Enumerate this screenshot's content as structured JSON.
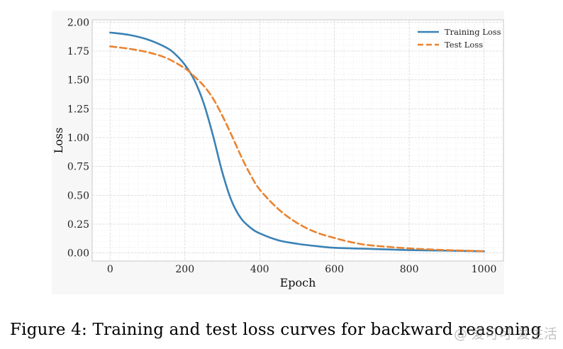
{
  "colors": {
    "training": "#3a82b5",
    "test": "#ea8330",
    "grid": "#dcdcdc",
    "plot_bg": "#ffffff"
  },
  "chart_data": {
    "type": "line",
    "xlabel": "Epoch",
    "ylabel": "Loss",
    "xlim": [
      -48,
      1052
    ],
    "ylim": [
      -0.07,
      2.02
    ],
    "xticks": [
      0,
      200,
      400,
      600,
      800,
      1000
    ],
    "yticks": [
      0.0,
      0.25,
      0.5,
      0.75,
      1.0,
      1.25,
      1.5,
      1.75,
      2.0
    ],
    "xtick_labels": [
      "0",
      "200",
      "400",
      "600",
      "800",
      "1000"
    ],
    "ytick_labels": [
      "0.00",
      "0.25",
      "0.50",
      "0.75",
      "1.00",
      "1.25",
      "1.50",
      "1.75",
      "2.00"
    ],
    "grid": true,
    "legend_position": "top-right",
    "series": [
      {
        "name": "Training Loss",
        "style": "solid",
        "x": [
          0,
          50,
          100,
          150,
          175,
          200,
          225,
          250,
          275,
          300,
          325,
          350,
          375,
          400,
          450,
          500,
          550,
          600,
          700,
          800,
          900,
          1000
        ],
        "y": [
          1.91,
          1.89,
          1.85,
          1.78,
          1.72,
          1.63,
          1.5,
          1.3,
          1.02,
          0.7,
          0.45,
          0.3,
          0.22,
          0.17,
          0.11,
          0.08,
          0.06,
          0.045,
          0.035,
          0.025,
          0.02,
          0.015
        ]
      },
      {
        "name": "Test Loss",
        "style": "dashed",
        "x": [
          0,
          50,
          100,
          150,
          200,
          225,
          250,
          275,
          300,
          325,
          350,
          375,
          400,
          450,
          500,
          550,
          600,
          650,
          700,
          800,
          900,
          1000
        ],
        "y": [
          1.79,
          1.77,
          1.74,
          1.69,
          1.6,
          1.53,
          1.45,
          1.34,
          1.19,
          1.02,
          0.84,
          0.68,
          0.55,
          0.38,
          0.26,
          0.18,
          0.13,
          0.09,
          0.065,
          0.04,
          0.025,
          0.015
        ]
      }
    ]
  },
  "caption": "Figure 4: Training and test loss curves for backward reasoning",
  "watermark": "@ 爱可可-爱生活"
}
